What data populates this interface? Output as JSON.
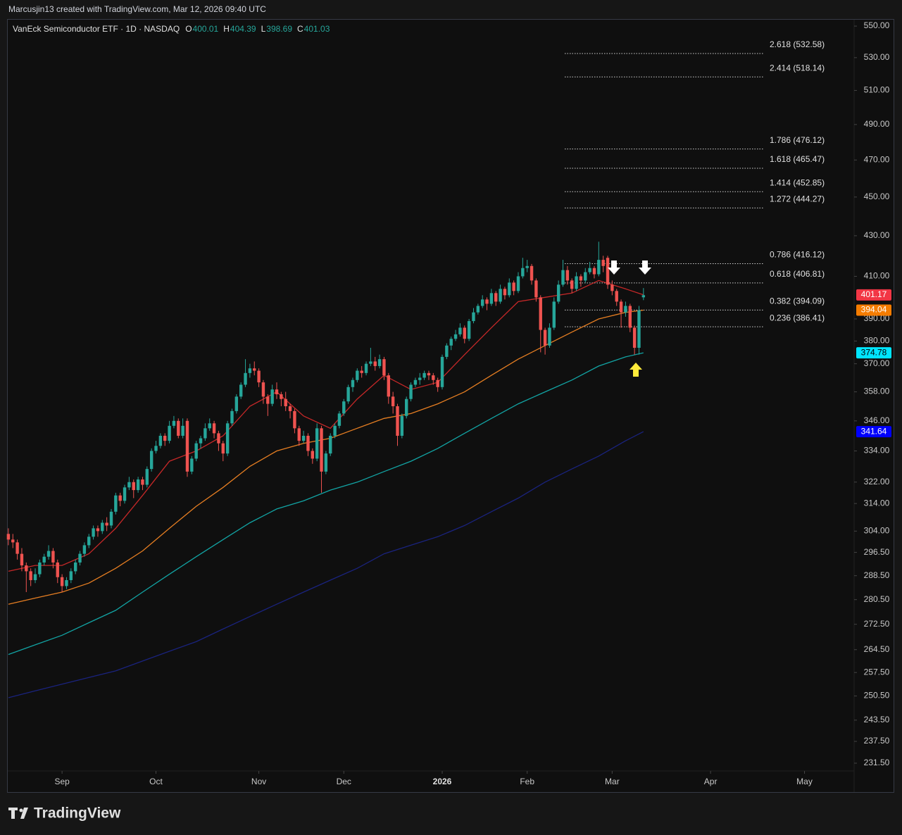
{
  "credit": "Marcusjin13 created with TradingView.com, Mar 12, 2026 09:40 UTC",
  "brand": "TradingView",
  "chart_data": {
    "type": "candlestick",
    "title": "VanEck Semiconductor ETF · 1D · NASDAQ",
    "ohlc_labels": [
      "O",
      "H",
      "L",
      "C"
    ],
    "up_color": "#26a69a",
    "down_color": "#ef5350",
    "log": true,
    "ylim": [
      229.4,
      554.6
    ],
    "yticks": [
      {
        "value": 550,
        "label": "550.00"
      },
      {
        "value": 530,
        "label": "530.00"
      },
      {
        "value": 510,
        "label": "510.00"
      },
      {
        "value": 490,
        "label": "490.00"
      },
      {
        "value": 470,
        "label": "470.00"
      },
      {
        "value": 450,
        "label": "450.00"
      },
      {
        "value": 430,
        "label": "430.00"
      },
      {
        "value": 410,
        "label": "410.00"
      },
      {
        "value": 390,
        "label": "390.00"
      },
      {
        "value": 380,
        "label": "380.00"
      },
      {
        "value": 370,
        "label": "370.00"
      },
      {
        "value": 358,
        "label": "358.00"
      },
      {
        "value": 346,
        "label": "346.00"
      },
      {
        "value": 334,
        "label": "334.00"
      },
      {
        "value": 322,
        "label": "322.00"
      },
      {
        "value": 314,
        "label": "314.00"
      },
      {
        "value": 304,
        "label": "304.00"
      },
      {
        "value": 296.5,
        "label": "296.50"
      },
      {
        "value": 288.5,
        "label": "288.50"
      },
      {
        "value": 280.5,
        "label": "280.50"
      },
      {
        "value": 272.5,
        "label": "272.50"
      },
      {
        "value": 264.5,
        "label": "264.50"
      },
      {
        "value": 257.5,
        "label": "257.50"
      },
      {
        "value": 250.5,
        "label": "250.50"
      },
      {
        "value": 243.5,
        "label": "243.50"
      },
      {
        "value": 237.5,
        "label": "237.50"
      },
      {
        "value": 231.5,
        "label": "231.50"
      }
    ],
    "xlim": [
      -0.3,
      189.1
    ],
    "xticks": [
      {
        "value": 12,
        "label": "Sep"
      },
      {
        "value": 33,
        "label": "Oct"
      },
      {
        "value": 56,
        "label": "Nov"
      },
      {
        "value": 75,
        "label": "Dec"
      },
      {
        "value": 97,
        "label": "2026"
      },
      {
        "value": 116,
        "label": "Feb"
      },
      {
        "value": 135,
        "label": "Mar"
      },
      {
        "value": 157,
        "label": "Apr"
      },
      {
        "value": 178,
        "label": "May"
      }
    ],
    "ohlc": [
      [
        303,
        305,
        299,
        301
      ],
      [
        301,
        303,
        298,
        300
      ],
      [
        300,
        301,
        294,
        296
      ],
      [
        296,
        298,
        290,
        292
      ],
      [
        292,
        293,
        283,
        290
      ],
      [
        290,
        291,
        285,
        287
      ],
      [
        287,
        291,
        286,
        289
      ],
      [
        289,
        294,
        288,
        293
      ],
      [
        293,
        296,
        292,
        295
      ],
      [
        295,
        299,
        294,
        297
      ],
      [
        297,
        298,
        291,
        293
      ],
      [
        293,
        294,
        286,
        288
      ],
      [
        288,
        289,
        283,
        285
      ],
      [
        285,
        288,
        284,
        287
      ],
      [
        287,
        291,
        286,
        290
      ],
      [
        290,
        294,
        289,
        293
      ],
      [
        293,
        297,
        292,
        296
      ],
      [
        296,
        300,
        295,
        299
      ],
      [
        299,
        303,
        298,
        302
      ],
      [
        302,
        306,
        301,
        305
      ],
      [
        305,
        306,
        302,
        304
      ],
      [
        304,
        308,
        303,
        307
      ],
      [
        307,
        309,
        304,
        306
      ],
      [
        306,
        312,
        305,
        311
      ],
      [
        311,
        318,
        310,
        317
      ],
      [
        317,
        318,
        313,
        315
      ],
      [
        315,
        321,
        314,
        320
      ],
      [
        320,
        324,
        319,
        322
      ],
      [
        322,
        323,
        316,
        319
      ],
      [
        319,
        324,
        318,
        323
      ],
      [
        323,
        324,
        319,
        321
      ],
      [
        321,
        328,
        320,
        327
      ],
      [
        327,
        335,
        326,
        334
      ],
      [
        334,
        338,
        333,
        336
      ],
      [
        336,
        341,
        335,
        340
      ],
      [
        340,
        341,
        336,
        338
      ],
      [
        338,
        346,
        337,
        344
      ],
      [
        344,
        348,
        343,
        346
      ],
      [
        346,
        347,
        339,
        340
      ],
      [
        340,
        347,
        339,
        344
      ],
      [
        346,
        347,
        324,
        326
      ],
      [
        326,
        332,
        325,
        331
      ],
      [
        331,
        338,
        330,
        337
      ],
      [
        337,
        340,
        335,
        339
      ],
      [
        339,
        345,
        338,
        343
      ],
      [
        343,
        347,
        342,
        345
      ],
      [
        345,
        346,
        339,
        341
      ],
      [
        341,
        342,
        334,
        337
      ],
      [
        337,
        338,
        330,
        333
      ],
      [
        333,
        346,
        332,
        345
      ],
      [
        345,
        351,
        344,
        350
      ],
      [
        350,
        357,
        349,
        356
      ],
      [
        356,
        362,
        355,
        361
      ],
      [
        361,
        372,
        360,
        366
      ],
      [
        366,
        370,
        364,
        368
      ],
      [
        368,
        371,
        365,
        367
      ],
      [
        367,
        368,
        360,
        362
      ],
      [
        362,
        363,
        353,
        356
      ],
      [
        356,
        357,
        348,
        353
      ],
      [
        353,
        361,
        352,
        359
      ],
      [
        359,
        362,
        355,
        357
      ],
      [
        357,
        358,
        352,
        355
      ],
      [
        355,
        358,
        350,
        352
      ],
      [
        352,
        353,
        347,
        350
      ],
      [
        350,
        351,
        341,
        343
      ],
      [
        343,
        344,
        336,
        338
      ],
      [
        338,
        342,
        337,
        340
      ],
      [
        340,
        341,
        332,
        334
      ],
      [
        334,
        335,
        329,
        331
      ],
      [
        331,
        345,
        330,
        343
      ],
      [
        343,
        344,
        318,
        326
      ],
      [
        326,
        334,
        325,
        333
      ],
      [
        333,
        341,
        332,
        340
      ],
      [
        340,
        345,
        339,
        344
      ],
      [
        344,
        350,
        343,
        349
      ],
      [
        349,
        355,
        348,
        354
      ],
      [
        354,
        361,
        353,
        360
      ],
      [
        360,
        364,
        358,
        363
      ],
      [
        363,
        368,
        362,
        367
      ],
      [
        367,
        369,
        364,
        366
      ],
      [
        366,
        371,
        365,
        370
      ],
      [
        370,
        377,
        369,
        371
      ],
      [
        371,
        373,
        367,
        369
      ],
      [
        369,
        374,
        368,
        372
      ],
      [
        372,
        373,
        363,
        365
      ],
      [
        365,
        366,
        353,
        356
      ],
      [
        356,
        358,
        349,
        352
      ],
      [
        352,
        353,
        336,
        340
      ],
      [
        340,
        349,
        339,
        348
      ],
      [
        348,
        356,
        347,
        355
      ],
      [
        355,
        362,
        354,
        361
      ],
      [
        361,
        364,
        360,
        363
      ],
      [
        363,
        366,
        361,
        364
      ],
      [
        364,
        367,
        363,
        366
      ],
      [
        366,
        367,
        363,
        365
      ],
      [
        365,
        366,
        361,
        363
      ],
      [
        363,
        364,
        358,
        360
      ],
      [
        360,
        374,
        359,
        373
      ],
      [
        373,
        379,
        372,
        378
      ],
      [
        378,
        382,
        376,
        381
      ],
      [
        381,
        385,
        380,
        383
      ],
      [
        383,
        388,
        382,
        386
      ],
      [
        386,
        387,
        379,
        381
      ],
      [
        381,
        390,
        380,
        389
      ],
      [
        389,
        395,
        388,
        393
      ],
      [
        393,
        397,
        392,
        396
      ],
      [
        396,
        401,
        395,
        399
      ],
      [
        399,
        400,
        394,
        397
      ],
      [
        397,
        404,
        396,
        402
      ],
      [
        402,
        403,
        396,
        398
      ],
      [
        398,
        406,
        397,
        404
      ],
      [
        404,
        405,
        399,
        401
      ],
      [
        401,
        409,
        400,
        407
      ],
      [
        407,
        408,
        401,
        403
      ],
      [
        403,
        412,
        402,
        410
      ],
      [
        410,
        419,
        409,
        414
      ],
      [
        414,
        418,
        412,
        415
      ],
      [
        415,
        416,
        406,
        408
      ],
      [
        408,
        409,
        398,
        400
      ],
      [
        400,
        401,
        375,
        385
      ],
      [
        385,
        386,
        374,
        378
      ],
      [
        378,
        388,
        377,
        386
      ],
      [
        386,
        400,
        385,
        398
      ],
      [
        398,
        408,
        397,
        406
      ],
      [
        406,
        418,
        405,
        413
      ],
      [
        413,
        415,
        406,
        408
      ],
      [
        408,
        409,
        402,
        404
      ],
      [
        404,
        412,
        403,
        410
      ],
      [
        410,
        411,
        405,
        408
      ],
      [
        408,
        414,
        407,
        412
      ],
      [
        412,
        417,
        411,
        414
      ],
      [
        414,
        415,
        409,
        411
      ],
      [
        411,
        427,
        410,
        418
      ],
      [
        418,
        420,
        412,
        415
      ],
      [
        419,
        420,
        404,
        406
      ],
      [
        406,
        408,
        401,
        403
      ],
      [
        403,
        404,
        396,
        398
      ],
      [
        398,
        399,
        386,
        393
      ],
      [
        393,
        398,
        391,
        396
      ],
      [
        396,
        397,
        384,
        386
      ],
      [
        386,
        387,
        374,
        377
      ],
      [
        377,
        396,
        374,
        394
      ],
      [
        400.01,
        404.39,
        398.69,
        401.03
      ]
    ],
    "lines": [
      {
        "color": "#c62828",
        "tag_color": "#f23645",
        "tag_text": "#ffffff",
        "x": [
          0,
          6,
          12,
          18,
          24,
          30,
          36,
          42,
          48,
          54,
          60,
          66,
          72,
          78,
          84,
          90,
          96,
          102,
          108,
          114,
          120,
          126,
          132,
          138,
          142
        ],
        "values": [
          290,
          292,
          292,
          296,
          305,
          317,
          330,
          334,
          340,
          352,
          358,
          348,
          343,
          355,
          365,
          359,
          362,
          374,
          386,
          398,
          400,
          402,
          408,
          404,
          401.17
        ]
      },
      {
        "color": "#e67e22",
        "tag_color": "#f57c00",
        "tag_text": "#ffffff",
        "x": [
          0,
          6,
          12,
          18,
          24,
          30,
          36,
          42,
          48,
          54,
          60,
          66,
          72,
          78,
          84,
          90,
          96,
          102,
          108,
          114,
          120,
          126,
          132,
          138,
          142
        ],
        "values": [
          279,
          281,
          283,
          286,
          291,
          297,
          305,
          313,
          320,
          328,
          334,
          337,
          339,
          343,
          347,
          349,
          353,
          358,
          365,
          372,
          378,
          384,
          390,
          393,
          394.04
        ]
      },
      {
        "color": "#12a4a4",
        "tag_color": "#00e5ff",
        "tag_text": "#000000",
        "x": [
          0,
          6,
          12,
          18,
          24,
          30,
          36,
          42,
          48,
          54,
          60,
          66,
          72,
          78,
          84,
          90,
          96,
          102,
          108,
          114,
          120,
          126,
          132,
          138,
          142
        ],
        "values": [
          263,
          266,
          269,
          273,
          277,
          283,
          289,
          295,
          301,
          307,
          312,
          315,
          319,
          322,
          326,
          330,
          335,
          341,
          347,
          353,
          358,
          363,
          369,
          373,
          374.78
        ]
      },
      {
        "color": "#1a237e",
        "tag_color": "#0000ff",
        "tag_text": "#ffffff",
        "x": [
          0,
          6,
          12,
          18,
          24,
          30,
          36,
          42,
          48,
          54,
          60,
          66,
          72,
          78,
          84,
          90,
          96,
          102,
          108,
          114,
          120,
          126,
          132,
          138,
          142
        ],
        "values": [
          250,
          252,
          254,
          256,
          258,
          261,
          264,
          267,
          271,
          275,
          279,
          283,
          287,
          291,
          296,
          299,
          302,
          306,
          311,
          316,
          322,
          327,
          332,
          338,
          341.64
        ]
      }
    ],
    "fib_levels": [
      {
        "value": 532.58,
        "label": "2.618 (532.58)"
      },
      {
        "value": 518.14,
        "label": "2.414 (518.14)"
      },
      {
        "value": 476.12,
        "label": "1.786 (476.12)"
      },
      {
        "value": 465.47,
        "label": "1.618 (465.47)"
      },
      {
        "value": 452.85,
        "label": "1.414 (452.85)"
      },
      {
        "value": 444.27,
        "label": "1.272 (444.27)"
      },
      {
        "value": 416.12,
        "label": "0.786 (416.12)"
      },
      {
        "value": 406.81,
        "label": "0.618 (406.81)"
      },
      {
        "value": 394.09,
        "label": "0.382 (394.09)"
      },
      {
        "value": 386.41,
        "label": "0.236 (386.41)"
      }
    ]
  }
}
